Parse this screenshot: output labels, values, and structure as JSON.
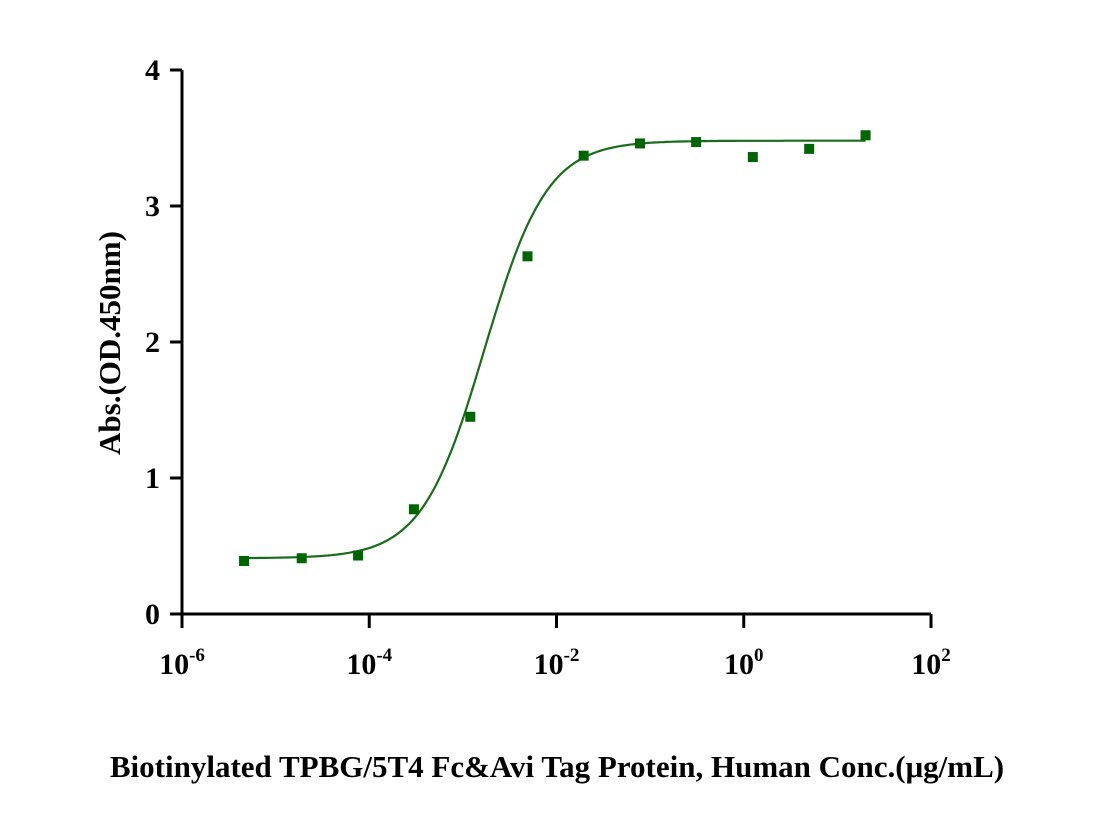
{
  "chart_data": {
    "type": "scatter",
    "title": "",
    "xlabel": "Biotinylated TPBG/5T4 Fc&Avi Tag Protein, Human  Conc.(μg/mL)",
    "ylabel": "Abs.(OD.450nm)",
    "xscale": "log",
    "xlim": [
      1e-06,
      100
    ],
    "ylim": [
      0,
      4
    ],
    "x_ticks": [
      {
        "base": "10",
        "exp": "-6"
      },
      {
        "base": "10",
        "exp": "-4"
      },
      {
        "base": "10",
        "exp": "-2"
      },
      {
        "base": "10",
        "exp": "0"
      },
      {
        "base": "10",
        "exp": "2"
      }
    ],
    "y_ticks": [
      "0",
      "1",
      "2",
      "3",
      "4"
    ],
    "grid": false,
    "legend": "none",
    "colors": {
      "series": "#006400",
      "curve": "#1a6b1a",
      "axis": "#000000"
    },
    "series": [
      {
        "marker": "square",
        "points": [
          {
            "x": 4.6e-06,
            "y": 0.39
          },
          {
            "x": 1.9e-05,
            "y": 0.41
          },
          {
            "x": 7.6e-05,
            "y": 0.43
          },
          {
            "x": 0.0003,
            "y": 0.77
          },
          {
            "x": 0.0012,
            "y": 1.45
          },
          {
            "x": 0.0049,
            "y": 2.63
          },
          {
            "x": 0.0195,
            "y": 3.37
          },
          {
            "x": 0.078,
            "y": 3.46
          },
          {
            "x": 0.31,
            "y": 3.47
          },
          {
            "x": 1.25,
            "y": 3.36
          },
          {
            "x": 5,
            "y": 3.42
          },
          {
            "x": 20,
            "y": 3.52
          }
        ],
        "fit": {
          "model": "4PL",
          "bottom": 0.41,
          "top": 3.48,
          "ec50": 0.0017,
          "hill": 1.3
        }
      }
    ]
  }
}
